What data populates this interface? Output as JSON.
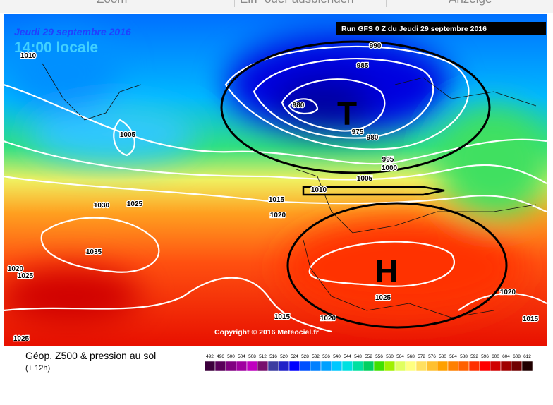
{
  "toolbar": {
    "items": [
      "Zoom",
      "Ein- oder ausblenden",
      "Anzeige"
    ]
  },
  "map": {
    "date": "Jeudi 29 septembre 2016",
    "time": "14:00 locale",
    "run": "Run GFS 0 Z du Jeudi 29 septembre 2016",
    "low": "T",
    "high": "H",
    "copyright": "Copyright © 2016 Meteociel.fr",
    "isobar_labels": [
      990,
      985,
      980,
      975,
      980,
      995,
      1000,
      1005,
      1010,
      1015,
      1020,
      1025,
      1030,
      1035,
      1005,
      1010,
      1020,
      1025,
      1025,
      1015,
      1020,
      1020,
      1015,
      1025
    ]
  },
  "legend": {
    "title": "Géop. Z500 & pression au sol",
    "lead": "(+ 12h)",
    "scale": {
      "labels": [
        492,
        496,
        500,
        504,
        508,
        512,
        516,
        520,
        524,
        528,
        532,
        536,
        540,
        544,
        548,
        552,
        556,
        560,
        564,
        568,
        572,
        576,
        580,
        584,
        588,
        592,
        596,
        600,
        604,
        608,
        612
      ],
      "colors": [
        "#3c003c",
        "#5a005a",
        "#800080",
        "#a000a0",
        "#c000c0",
        "#78106e",
        "#3c3ca0",
        "#2020c8",
        "#0000ff",
        "#0050ff",
        "#0080ff",
        "#00a0ff",
        "#00c8ff",
        "#00e0e0",
        "#00e0a0",
        "#00d060",
        "#40e000",
        "#a0f000",
        "#e0ff60",
        "#ffff80",
        "#ffe060",
        "#ffc030",
        "#ffa000",
        "#ff8000",
        "#ff6000",
        "#ff3000",
        "#ff0000",
        "#d00000",
        "#a00000",
        "#700000",
        "#200000"
      ]
    }
  }
}
